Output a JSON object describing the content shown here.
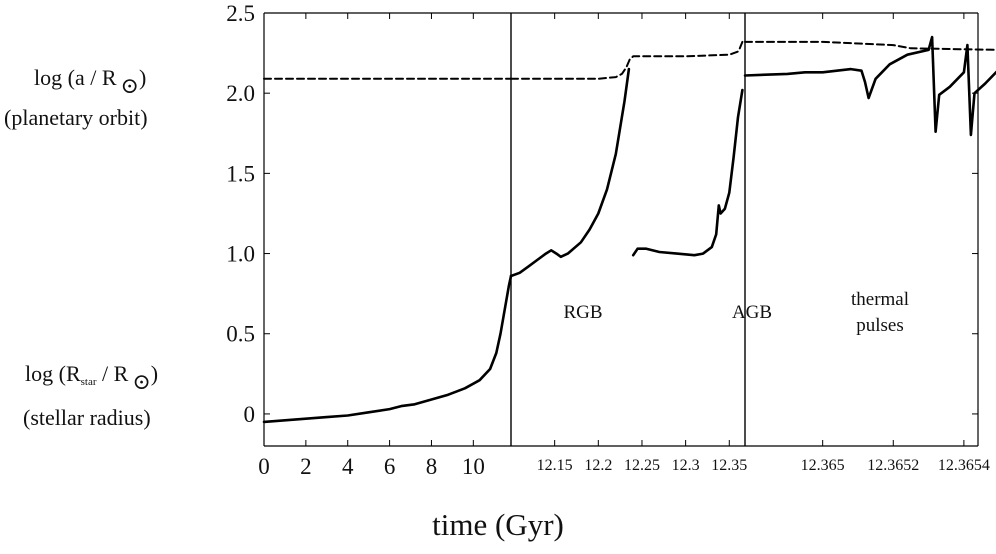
{
  "chart_data": {
    "type": "line",
    "title": "",
    "xlabel": "time (Gyr)",
    "ylabel": "",
    "ylim": [
      -0.2,
      2.5
    ],
    "ytick_labels": [
      "0",
      "0.5",
      "1.0",
      "1.5",
      "2.0",
      "2.5"
    ],
    "y_side_labels": {
      "orbit": {
        "main": "log (a  / R",
        "close": ")",
        "sub": "(planetary orbit)"
      },
      "radius": {
        "main": "log (R",
        "star_sub": "star",
        "mid": " / R",
        "close": ")",
        "sub": "(stellar radius)"
      }
    },
    "panels": [
      {
        "name": "panel-main-sequence",
        "xlim": [
          0,
          11.8
        ],
        "xticks": [
          "0",
          "2",
          "4",
          "6",
          "8",
          "10"
        ],
        "xtick_values": [
          0,
          2,
          4,
          6,
          8,
          10
        ],
        "region_label": []
      },
      {
        "name": "panel-rgb",
        "xlim": [
          12.1,
          12.368
        ],
        "xticks": [
          "12.15",
          "12.2",
          "12.25",
          "12.3",
          "12.35"
        ],
        "xtick_values": [
          12.15,
          12.2,
          12.25,
          12.3,
          12.35
        ],
        "region_label": [
          "RGB"
        ]
      },
      {
        "name": "panel-thermal-pulses",
        "xlim": [
          12.36478,
          12.36544
        ],
        "xticks": [
          "12.365",
          "12.3652",
          "12.3654"
        ],
        "xtick_values": [
          12.365,
          12.3652,
          12.3654
        ],
        "region_label": [
          "thermal",
          "pulses"
        ]
      }
    ],
    "agb_label": "AGB",
    "series": [
      {
        "style": "solid",
        "segments": [
          {
            "panel": 0,
            "points": [
              [
                0,
                -0.05
              ],
              [
                1,
                -0.04
              ],
              [
                2,
                -0.03
              ],
              [
                3,
                -0.02
              ],
              [
                4,
                -0.01
              ],
              [
                5,
                0.01
              ],
              [
                6,
                0.03
              ],
              [
                6.6,
                0.05
              ],
              [
                7.2,
                0.06
              ],
              [
                8,
                0.09
              ],
              [
                8.8,
                0.12
              ],
              [
                9.6,
                0.16
              ],
              [
                10.3,
                0.21
              ],
              [
                10.8,
                0.28
              ],
              [
                11.1,
                0.38
              ],
              [
                11.3,
                0.5
              ],
              [
                11.5,
                0.65
              ],
              [
                11.7,
                0.8
              ],
              [
                11.8,
                0.86
              ]
            ]
          },
          {
            "panel": 1,
            "points": [
              [
                12.1,
                0.86
              ],
              [
                12.11,
                0.88
              ],
              [
                12.12,
                0.92
              ],
              [
                12.13,
                0.96
              ],
              [
                12.14,
                1.0
              ],
              [
                12.146,
                1.02
              ],
              [
                12.152,
                1.0
              ],
              [
                12.157,
                0.98
              ],
              [
                12.165,
                1.0
              ],
              [
                12.18,
                1.07
              ],
              [
                12.19,
                1.15
              ],
              [
                12.2,
                1.25
              ],
              [
                12.21,
                1.4
              ],
              [
                12.22,
                1.62
              ],
              [
                12.23,
                1.95
              ],
              [
                12.235,
                2.15
              ]
            ]
          },
          {
            "panel": 1,
            "points": [
              [
                12.24,
                0.99
              ],
              [
                12.245,
                1.03
              ],
              [
                12.255,
                1.03
              ],
              [
                12.27,
                1.01
              ],
              [
                12.29,
                1.0
              ],
              [
                12.31,
                0.99
              ],
              [
                12.32,
                1.0
              ],
              [
                12.33,
                1.04
              ],
              [
                12.335,
                1.12
              ],
              [
                12.338,
                1.3
              ],
              [
                12.34,
                1.25
              ],
              [
                12.345,
                1.28
              ],
              [
                12.35,
                1.38
              ],
              [
                12.355,
                1.6
              ],
              [
                12.36,
                1.85
              ],
              [
                12.365,
                2.02
              ]
            ]
          },
          {
            "panel": 2,
            "points": [
              [
                12.36478,
                2.11
              ],
              [
                12.3649,
                2.12
              ],
              [
                12.36495,
                2.13
              ],
              [
                12.365,
                2.13
              ],
              [
                12.36504,
                2.14
              ],
              [
                12.36508,
                2.15
              ],
              [
                12.36511,
                2.14
              ],
              [
                12.36512,
                2.07
              ],
              [
                12.36513,
                1.97
              ],
              [
                12.36515,
                2.09
              ],
              [
                12.36519,
                2.18
              ],
              [
                12.36524,
                2.24
              ],
              [
                12.3653,
                2.27
              ],
              [
                12.36531,
                2.35
              ],
              [
                12.36532,
                1.76
              ],
              [
                12.36533,
                1.99
              ],
              [
                12.36536,
                2.04
              ],
              [
                12.3654,
                2.13
              ],
              [
                12.36541,
                2.3
              ],
              [
                12.36542,
                1.74
              ],
              [
                12.36543,
                2.0
              ],
              [
                12.36546,
                2.06
              ],
              [
                12.3655,
                2.15
              ],
              [
                12.36551,
                2.33
              ],
              [
                12.36552,
                1.77
              ],
              [
                12.36553,
                2.01
              ],
              [
                12.36556,
                2.08
              ],
              [
                12.36559,
                2.15
              ],
              [
                12.36562,
                2.2
              ],
              [
                12.36565,
                2.23
              ],
              [
                12.36568,
                2.21
              ],
              [
                12.36569,
                2.26
              ],
              [
                12.3657,
                1.62
              ],
              [
                12.36571,
                1.8
              ],
              [
                12.36572,
                1.9
              ],
              [
                12.36574,
                1.97
              ],
              [
                12.36577,
                1.97
              ],
              [
                12.36579,
                1.87
              ],
              [
                12.36581,
                1.83
              ],
              [
                12.36583,
                1.8
              ],
              [
                12.36587,
                -0.2
              ]
            ]
          }
        ]
      },
      {
        "style": "dashed",
        "segments": [
          {
            "panel": 0,
            "points": [
              [
                0,
                2.09
              ],
              [
                11.8,
                2.09
              ]
            ]
          },
          {
            "panel": 1,
            "points": [
              [
                12.1,
                2.09
              ],
              [
                12.2,
                2.09
              ],
              [
                12.22,
                2.1
              ],
              [
                12.227,
                2.12
              ],
              [
                12.232,
                2.16
              ],
              [
                12.236,
                2.21
              ],
              [
                12.24,
                2.23
              ],
              [
                12.3,
                2.23
              ],
              [
                12.35,
                2.24
              ],
              [
                12.36,
                2.26
              ],
              [
                12.362,
                2.28
              ],
              [
                12.365,
                2.32
              ]
            ]
          },
          {
            "panel": 2,
            "points": [
              [
                12.36478,
                2.32
              ],
              [
                12.365,
                2.32
              ],
              [
                12.3652,
                2.3
              ],
              [
                12.36525,
                2.28
              ],
              [
                12.3655,
                2.27
              ],
              [
                12.36568,
                2.24
              ],
              [
                12.36575,
                2.2
              ],
              [
                12.3658,
                2.12
              ],
              [
                12.36585,
                2.1
              ],
              [
                12.3659,
                2.1
              ]
            ]
          }
        ]
      }
    ],
    "grid": false,
    "legend": "none"
  }
}
